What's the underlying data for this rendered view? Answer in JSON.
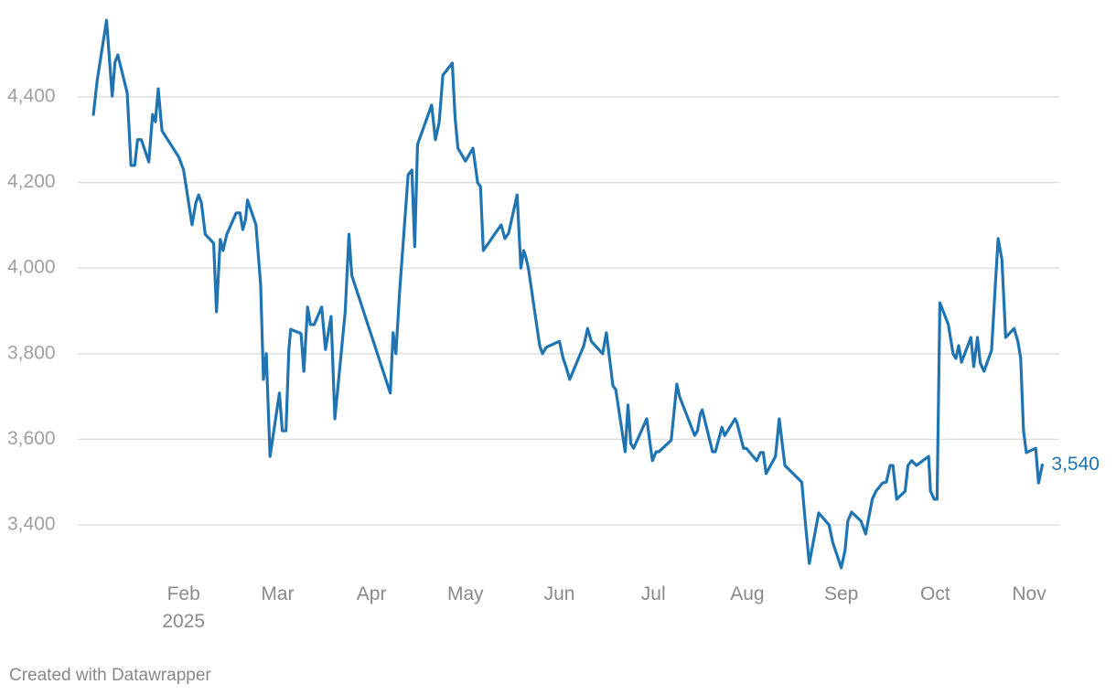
{
  "chart_data": {
    "type": "line",
    "x": [
      0.04,
      0.08,
      0.18,
      0.24,
      0.27,
      0.3,
      0.4,
      0.44,
      0.48,
      0.51,
      0.55,
      0.63,
      0.67,
      0.7,
      0.73,
      0.77,
      0.95,
      1.0,
      1.09,
      1.13,
      1.16,
      1.19,
      1.23,
      1.32,
      1.35,
      1.39,
      1.42,
      1.46,
      1.56,
      1.6,
      1.63,
      1.66,
      1.68,
      1.77,
      1.82,
      1.85,
      1.88,
      1.92,
      2.02,
      2.05,
      2.09,
      2.12,
      2.14,
      2.25,
      2.28,
      2.32,
      2.35,
      2.39,
      2.47,
      2.51,
      2.57,
      2.61,
      2.72,
      2.76,
      2.79,
      3.2,
      3.23,
      3.26,
      3.3,
      3.39,
      3.43,
      3.46,
      3.49,
      3.64,
      3.68,
      3.72,
      3.76,
      3.86,
      3.89,
      3.92,
      4.0,
      4.08,
      4.13,
      4.16,
      4.19,
      4.38,
      4.42,
      4.46,
      4.55,
      4.59,
      4.62,
      4.64,
      4.67,
      4.79,
      4.82,
      4.86,
      5.0,
      5.04,
      5.07,
      5.11,
      5.26,
      5.3,
      5.34,
      5.46,
      5.5,
      5.57,
      5.6,
      5.7,
      5.73,
      5.76,
      5.79,
      5.93,
      5.99,
      6.03,
      6.06,
      6.19,
      6.25,
      6.28,
      6.44,
      6.47,
      6.5,
      6.52,
      6.63,
      6.66,
      6.73,
      6.76,
      6.87,
      6.89,
      6.96,
      6.99,
      7.1,
      7.14,
      7.17,
      7.2,
      7.3,
      7.34,
      7.4,
      7.58,
      7.62,
      7.66,
      7.76,
      7.87,
      7.91,
      8.0,
      8.04,
      8.07,
      8.11,
      8.21,
      8.26,
      8.33,
      8.37,
      8.44,
      8.48,
      8.52,
      8.55,
      8.59,
      8.68,
      8.71,
      8.75,
      8.8,
      8.93,
      8.95,
      8.99,
      9.02,
      9.05,
      9.14,
      9.19,
      9.22,
      9.25,
      9.28,
      9.38,
      9.41,
      9.45,
      9.48,
      9.52,
      9.6,
      9.64,
      9.67,
      9.71,
      9.75,
      9.84,
      9.88,
      9.91,
      9.94,
      9.97,
      10.07,
      10.1,
      10.14
    ],
    "series": [
      {
        "color": "#1f74b1",
        "values": [
          4359,
          4438,
          4579,
          4402,
          4481,
          4498,
          4409,
          4240,
          4240,
          4300,
          4300,
          4248,
          4359,
          4342,
          4419,
          4321,
          4259,
          4229,
          4101,
          4152,
          4171,
          4152,
          4079,
          4058,
          3898,
          4067,
          4041,
          4079,
          4129,
          4129,
          4090,
          4114,
          4159,
          4101,
          3962,
          3740,
          3800,
          3560,
          3708,
          3620,
          3620,
          3808,
          3857,
          3847,
          3759,
          3909,
          3868,
          3868,
          3909,
          3810,
          3887,
          3648,
          3898,
          4079,
          3983,
          3708,
          3849,
          3800,
          3947,
          4218,
          4229,
          4050,
          4289,
          4381,
          4300,
          4340,
          4451,
          4479,
          4351,
          4280,
          4250,
          4280,
          4199,
          4191,
          4041,
          4101,
          4069,
          4082,
          4171,
          4000,
          4041,
          4028,
          4000,
          3819,
          3800,
          3815,
          3829,
          3789,
          3770,
          3740,
          3819,
          3859,
          3829,
          3800,
          3849,
          3725,
          3716,
          3571,
          3680,
          3590,
          3579,
          3648,
          3550,
          3571,
          3571,
          3598,
          3729,
          3699,
          3609,
          3620,
          3659,
          3669,
          3571,
          3571,
          3628,
          3609,
          3648,
          3639,
          3579,
          3579,
          3550,
          3569,
          3569,
          3520,
          3560,
          3648,
          3539,
          3500,
          3400,
          3310,
          3428,
          3400,
          3359,
          3300,
          3340,
          3409,
          3430,
          3409,
          3379,
          3460,
          3479,
          3498,
          3500,
          3539,
          3539,
          3460,
          3479,
          3539,
          3550,
          3539,
          3560,
          3479,
          3460,
          3460,
          3919,
          3868,
          3800,
          3789,
          3819,
          3780,
          3838,
          3770,
          3838,
          3778,
          3759,
          3808,
          3960,
          4069,
          4020,
          3838,
          3859,
          3829,
          3789,
          3620,
          3569,
          3579,
          3498,
          3540
        ],
        "value_labels": [
          null,
          null,
          null,
          null,
          null,
          null,
          null,
          null,
          null,
          null,
          null,
          null,
          null,
          null,
          null,
          null,
          null,
          null,
          null,
          null,
          null,
          null,
          null,
          null,
          null,
          null,
          null,
          null,
          null,
          null,
          null,
          null,
          null,
          null,
          null,
          null,
          null,
          null,
          null,
          null,
          null,
          null,
          null,
          null,
          null,
          null,
          null,
          null,
          null,
          null,
          null,
          null,
          null,
          null,
          null,
          null,
          null,
          null,
          null,
          null,
          null,
          null,
          null,
          null,
          null,
          null,
          null,
          null,
          null,
          null,
          null,
          null,
          null,
          null,
          null,
          null,
          null,
          null,
          null,
          null,
          null,
          null,
          null,
          null,
          null,
          null,
          null,
          null,
          null,
          null,
          null,
          null,
          null,
          null,
          null,
          null,
          null,
          null,
          null,
          null,
          null,
          null,
          null,
          null,
          null,
          null,
          null,
          null,
          null,
          null,
          null,
          null,
          null,
          null,
          null,
          null,
          null,
          null,
          null,
          null,
          null,
          null,
          null,
          null,
          null,
          null,
          null,
          null,
          null,
          null,
          null,
          null,
          null,
          null,
          null,
          null,
          null,
          null,
          null,
          null,
          null,
          null,
          null,
          null,
          null,
          null,
          null,
          null,
          null,
          null,
          null,
          null,
          null,
          null,
          null,
          null,
          null,
          null,
          null,
          null,
          null,
          null,
          null,
          null,
          null,
          null,
          null,
          null,
          null,
          null,
          null,
          null,
          null,
          null,
          null,
          null,
          null,
          "3,540"
        ]
      }
    ],
    "xlim": [
      0,
      10.35
    ],
    "xticks": [
      {
        "value": 1,
        "label": "Feb",
        "year": "2025"
      },
      {
        "value": 2,
        "label": "Mar"
      },
      {
        "value": 3,
        "label": "Apr"
      },
      {
        "value": 4,
        "label": "May"
      },
      {
        "value": 5,
        "label": "Jun"
      },
      {
        "value": 6,
        "label": "Jul"
      },
      {
        "value": 7,
        "label": "Aug"
      },
      {
        "value": 8,
        "label": "Sep"
      },
      {
        "value": 9,
        "label": "Oct"
      },
      {
        "value": 10,
        "label": "Nov"
      }
    ],
    "ylim": [
      3290,
      4605
    ],
    "yticks": [
      {
        "value": 3400,
        "label": "3,400"
      },
      {
        "value": 3600,
        "label": "3,600"
      },
      {
        "value": 3800,
        "label": "3,800"
      },
      {
        "value": 4000,
        "label": "4,000"
      },
      {
        "value": 4200,
        "label": "4,200"
      },
      {
        "value": 4400,
        "label": "4,400"
      }
    ],
    "grid": true,
    "credit": "Created with Datawrapper"
  }
}
